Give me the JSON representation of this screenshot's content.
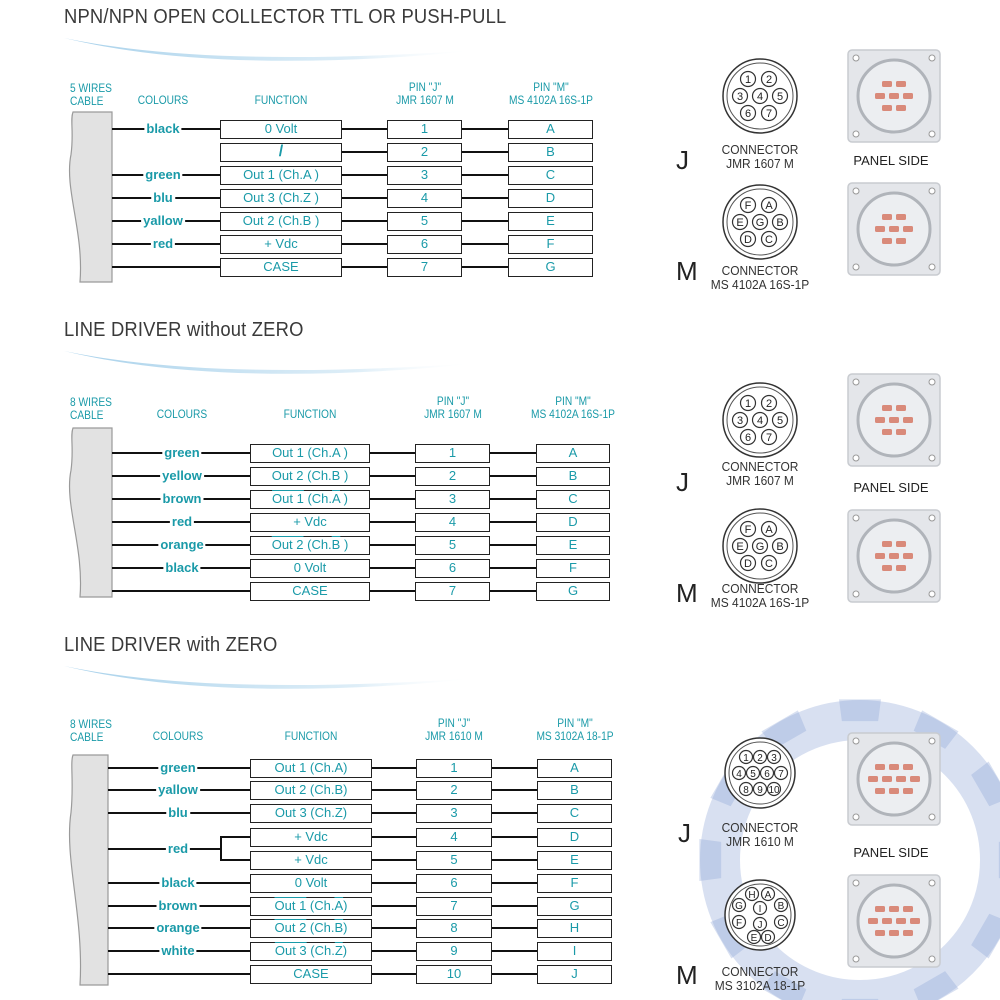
{
  "colors": {
    "accent": "#1a9aa8",
    "title": "#3a3a3a",
    "wire": "#111111",
    "cable": "#e2e2e2"
  },
  "sections": [
    {
      "title": "NPN/NPN OPEN COLLECTOR TTL OR PUSH-PULL",
      "headers": {
        "cable": [
          "5 WIRES",
          "CABLE"
        ],
        "colours": "COLOURS",
        "function": "FUNCTION",
        "pin_j": [
          "PIN \"J\"",
          "JMR 1607 M"
        ],
        "pin_m": [
          "PIN \"M\"",
          "MS 4102A 16S-1P"
        ]
      },
      "rows": [
        {
          "colour": "black",
          "function": "0 Volt",
          "j": "1",
          "m": "A"
        },
        {
          "colour": null,
          "function": "/",
          "j": "2",
          "m": "B"
        },
        {
          "colour": "green",
          "function": "Out 1 (Ch.A )",
          "j": "3",
          "m": "C"
        },
        {
          "colour": "blu",
          "function": "Out 3 (Ch.Z )",
          "j": "4",
          "m": "D"
        },
        {
          "colour": "yallow",
          "function": "Out 2 (Ch.B )",
          "j": "5",
          "m": "E"
        },
        {
          "colour": "red",
          "function": "+ Vdc",
          "j": "6",
          "m": "F"
        },
        {
          "colour": "",
          "function": "CASE",
          "j": "7",
          "m": "G"
        }
      ],
      "connectors": {
        "j": {
          "letter": "J",
          "label": [
            "CONNECTOR",
            "JMR 1607 M"
          ],
          "pins": [
            "1",
            "2",
            "3",
            "4",
            "5",
            "6",
            "7"
          ]
        },
        "m": {
          "letter": "M",
          "label": [
            "CONNECTOR",
            "MS 4102A 16S-1P"
          ],
          "pins": [
            "F",
            "A",
            "E",
            "G",
            "B",
            "D",
            "C"
          ]
        },
        "panel_label": "PANEL SIDE"
      }
    },
    {
      "title": "LINE DRIVER without ZERO",
      "headers": {
        "cable": [
          "8 WIRES",
          "CABLE"
        ],
        "colours": "COLOURS",
        "function": "FUNCTION",
        "pin_j": [
          "PIN \"J\"",
          "JMR 1607 M"
        ],
        "pin_m": [
          "PIN \"M\"",
          "MS 4102A 16S-1P"
        ]
      },
      "rows": [
        {
          "colour": "green",
          "function": "Out 1 (Ch.A )",
          "j": "1",
          "m": "A"
        },
        {
          "colour": "yellow",
          "function": "Out 2 (Ch.B )",
          "j": "2",
          "m": "B"
        },
        {
          "colour": "brown",
          "function": "Out 1 (Ch.A )",
          "inverted": true,
          "j": "3",
          "m": "C"
        },
        {
          "colour": "red",
          "function": "+ Vdc",
          "j": "4",
          "m": "D"
        },
        {
          "colour": "orange",
          "function": "Out 2 (Ch.B )",
          "inverted": true,
          "j": "5",
          "m": "E"
        },
        {
          "colour": "black",
          "function": "0 Volt",
          "j": "6",
          "m": "F"
        },
        {
          "colour": "",
          "function": "CASE",
          "j": "7",
          "m": "G"
        }
      ],
      "connectors": {
        "j": {
          "letter": "J",
          "label": [
            "CONNECTOR",
            "JMR 1607 M"
          ],
          "pins": [
            "1",
            "2",
            "3",
            "4",
            "5",
            "6",
            "7"
          ]
        },
        "m": {
          "letter": "M",
          "label": [
            "CONNECTOR",
            "MS 4102A 16S-1P"
          ],
          "pins": [
            "F",
            "A",
            "E",
            "G",
            "B",
            "D",
            "C"
          ]
        },
        "panel_label": "PANEL SIDE"
      }
    },
    {
      "title": "LINE DRIVER with ZERO",
      "headers": {
        "cable": [
          "8 WIRES",
          "CABLE"
        ],
        "colours": "COLOURS",
        "function": "FUNCTION",
        "pin_j": [
          "PIN \"J\"",
          "JMR 1610 M"
        ],
        "pin_m": [
          "PIN \"M\"",
          "MS 3102A 18-1P"
        ]
      },
      "rows": [
        {
          "colour": "green",
          "function": "Out 1 (Ch.A)",
          "j": "1",
          "m": "A"
        },
        {
          "colour": "yallow",
          "function": "Out 2 (Ch.B)",
          "j": "2",
          "m": "B"
        },
        {
          "colour": "blu",
          "function": "Out 3 (Ch.Z)",
          "j": "3",
          "m": "C"
        },
        {
          "colour": "red",
          "function": "+ Vdc",
          "j": "4",
          "m": "D",
          "split": true
        },
        {
          "colour": null,
          "function": "+ Vdc",
          "j": "5",
          "m": "E",
          "branch": true
        },
        {
          "colour": "black",
          "function": "0 Volt",
          "j": "6",
          "m": "F"
        },
        {
          "colour": "brown",
          "function": "Out 1 (Ch.A)",
          "inverted": true,
          "j": "7",
          "m": "G"
        },
        {
          "colour": "orange",
          "function": "Out 2 (Ch.B)",
          "inverted": true,
          "j": "8",
          "m": "H"
        },
        {
          "colour": "white",
          "function": "Out 3 (Ch.Z)",
          "inverted": true,
          "j": "9",
          "m": "I"
        },
        {
          "colour": "",
          "function": "CASE",
          "j": "10",
          "m": "J"
        }
      ],
      "connectors": {
        "j": {
          "letter": "J",
          "label": [
            "CONNECTOR",
            "JMR 1610 M"
          ],
          "pins": [
            "1",
            "2",
            "3",
            "4",
            "5",
            "6",
            "7",
            "8",
            "9",
            "10"
          ]
        },
        "m": {
          "letter": "M",
          "label": [
            "CONNECTOR",
            "MS 3102A 18-1P"
          ],
          "pins": [
            "H",
            "A",
            "G",
            "I",
            "B",
            "F",
            "J",
            "C",
            "E",
            "D"
          ]
        },
        "panel_label": "PANEL SIDE"
      }
    }
  ]
}
